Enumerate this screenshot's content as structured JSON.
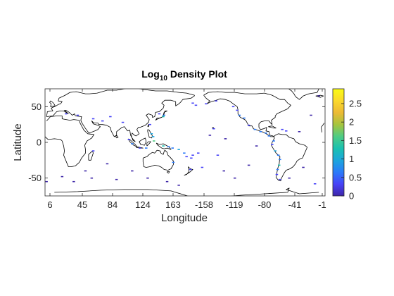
{
  "chart_data": {
    "type": "heatmap",
    "title_main": "Log",
    "title_sub": "10",
    "title_rest": " Density Plot",
    "xlabel": "Longitude",
    "ylabel": "Latitude",
    "xticks": [
      "6",
      "45",
      "84",
      "124",
      "163",
      "-158",
      "-119",
      "-80",
      "-41",
      "-1"
    ],
    "yticks": [
      "50",
      "0",
      "-50"
    ],
    "yrange": [
      -75,
      75
    ],
    "colorbar": {
      "range": [
        0,
        2.9
      ],
      "ticks": [
        "0",
        "0.5",
        "1",
        "1.5",
        "2",
        "2.5"
      ],
      "colormap": [
        "#3e26a8",
        "#4743f8",
        "#2b7bf9",
        "#1ca6dc",
        "#1ac1b0",
        "#4fcc84",
        "#a6c43e",
        "#ecba35",
        "#fbd92c",
        "#f9fb14"
      ]
    },
    "cells": [
      {
        "lon": 135,
        "lat": 40,
        "v": 0.3
      },
      {
        "lon": 140,
        "lat": 36,
        "v": 1.2
      },
      {
        "lon": 141,
        "lat": 38,
        "v": 0.8
      },
      {
        "lon": 123,
        "lat": 25,
        "v": 0.2
      },
      {
        "lon": 125,
        "lat": 12,
        "v": 1.0
      },
      {
        "lon": 127,
        "lat": 8,
        "v": 0.9
      },
      {
        "lon": 128,
        "lat": 2,
        "v": 1.6
      },
      {
        "lon": 118,
        "lat": -8,
        "v": 0.6
      },
      {
        "lon": 110,
        "lat": -8,
        "v": 0.4
      },
      {
        "lon": 100,
        "lat": -2,
        "v": 0.5
      },
      {
        "lon": 96,
        "lat": 4,
        "v": 0.3
      },
      {
        "lon": 140,
        "lat": -5,
        "v": 1.3
      },
      {
        "lon": 147,
        "lat": -6,
        "v": 0.7
      },
      {
        "lon": 152,
        "lat": -8,
        "v": 0.5
      },
      {
        "lon": 160,
        "lat": -10,
        "v": 0.9
      },
      {
        "lon": 167,
        "lat": -15,
        "v": 0.6
      },
      {
        "lon": 170,
        "lat": -20,
        "v": 0.4
      },
      {
        "lon": 176,
        "lat": -22,
        "v": 0.3
      },
      {
        "lon": 178,
        "lat": -18,
        "v": 0.2
      },
      {
        "lon": 175,
        "lat": -38,
        "v": 0.3
      },
      {
        "lon": 153,
        "lat": -28,
        "v": 0.5
      },
      {
        "lon": 72,
        "lat": 36,
        "v": 0.3
      },
      {
        "lon": 62,
        "lat": 30,
        "v": 0.2
      },
      {
        "lon": 50,
        "lat": 33,
        "v": 0.3
      },
      {
        "lon": 30,
        "lat": 38,
        "v": 0.3
      },
      {
        "lon": 15,
        "lat": 40,
        "v": 0.2
      },
      {
        "lon": 88,
        "lat": 28,
        "v": 0.2
      },
      {
        "lon": 50,
        "lat": -12,
        "v": 0.2
      },
      {
        "lon": 40,
        "lat": -40,
        "v": 0.1
      },
      {
        "lon": 48,
        "lat": -50,
        "v": 0.1
      },
      {
        "lon": 68,
        "lat": -30,
        "v": 0.1
      },
      {
        "lon": 80,
        "lat": -52,
        "v": 0.1
      },
      {
        "lon": 25,
        "lat": -55,
        "v": 0.1
      },
      {
        "lon": 10,
        "lat": -48,
        "v": 0.1
      },
      {
        "lon": 100,
        "lat": -40,
        "v": 0.1
      },
      {
        "lon": 120,
        "lat": -50,
        "v": 0.1
      },
      {
        "lon": 145,
        "lat": -55,
        "v": 0.1
      },
      {
        "lon": 160,
        "lat": -60,
        "v": 0.1
      },
      {
        "lon": 178,
        "lat": 55,
        "v": 0.2
      },
      {
        "lon": -178,
        "lat": 52,
        "v": 0.2
      },
      {
        "lon": -165,
        "lat": 54,
        "v": 0.3
      },
      {
        "lon": -152,
        "lat": 58,
        "v": 0.3
      },
      {
        "lon": -122,
        "lat": 38,
        "v": 0.6
      },
      {
        "lon": -116,
        "lat": 34,
        "v": 0.7
      },
      {
        "lon": -110,
        "lat": 24,
        "v": 0.2
      },
      {
        "lon": -102,
        "lat": 18,
        "v": 0.6
      },
      {
        "lon": -95,
        "lat": 15,
        "v": 0.5
      },
      {
        "lon": -88,
        "lat": 13,
        "v": 0.5
      },
      {
        "lon": -84,
        "lat": 9,
        "v": 0.8
      },
      {
        "lon": -78,
        "lat": 2,
        "v": 0.5
      },
      {
        "lon": -80,
        "lat": -3,
        "v": 0.4
      },
      {
        "lon": -76,
        "lat": -12,
        "v": 1.1
      },
      {
        "lon": -72,
        "lat": -18,
        "v": 0.6
      },
      {
        "lon": -70,
        "lat": -24,
        "v": 0.5
      },
      {
        "lon": -71,
        "lat": -32,
        "v": 1.2
      },
      {
        "lon": -73,
        "lat": -38,
        "v": 0.8
      },
      {
        "lon": -74,
        "lat": -45,
        "v": 0.4
      },
      {
        "lon": -70,
        "lat": -52,
        "v": 0.3
      },
      {
        "lon": -62,
        "lat": 16,
        "v": 0.4
      },
      {
        "lon": -67,
        "lat": 18,
        "v": 0.2
      },
      {
        "lon": -45,
        "lat": 15,
        "v": 0.1
      },
      {
        "lon": -30,
        "lat": 38,
        "v": 0.1
      },
      {
        "lon": -20,
        "lat": 65,
        "v": 0.1
      },
      {
        "lon": -40,
        "lat": -35,
        "v": 0.1
      },
      {
        "lon": -25,
        "lat": -58,
        "v": 0.2
      },
      {
        "lon": -10,
        "lat": -55,
        "v": 0.1
      },
      {
        "lon": -58,
        "lat": -50,
        "v": 0.1
      },
      {
        "lon": -110,
        "lat": -32,
        "v": 0.1
      },
      {
        "lon": -128,
        "lat": -50,
        "v": 0.1
      },
      {
        "lon": -142,
        "lat": -40,
        "v": 0.1
      },
      {
        "lon": -150,
        "lat": -18,
        "v": 0.2
      },
      {
        "lon": -175,
        "lat": -15,
        "v": 0.2
      },
      {
        "lon": -155,
        "lat": 19,
        "v": 0.4
      },
      {
        "lon": -160,
        "lat": 10,
        "v": 0.1
      },
      {
        "lon": -140,
        "lat": 5,
        "v": 0.1
      },
      {
        "lon": -100,
        "lat": -5,
        "v": 0.1
      },
      {
        "lon": -170,
        "lat": -35,
        "v": 0.2
      },
      {
        "lon": -125,
        "lat": 45,
        "v": 0.3
      },
      {
        "lon": -130,
        "lat": 50,
        "v": 0.2
      }
    ]
  }
}
